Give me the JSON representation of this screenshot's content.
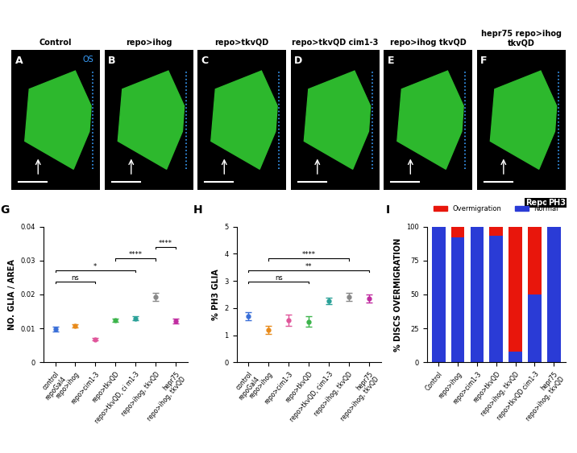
{
  "images": [
    {
      "panel": "A",
      "title": "Control",
      "annotation": "OS"
    },
    {
      "panel": "B",
      "title": "repo>ihog"
    },
    {
      "panel": "C",
      "title": "repo>tkvQD"
    },
    {
      "panel": "D",
      "title": "repo>tkvQD cim1-3"
    },
    {
      "panel": "E",
      "title": "repo>ihog tkvQD"
    },
    {
      "panel": "F",
      "title": "hepr75 repo>ihog\ntkvQD"
    }
  ],
  "stain_legend": [
    {
      "text": "Repo",
      "color": "#33cc33"
    },
    {
      "text": "PH3",
      "color": "#ff2020"
    }
  ],
  "chart_data": [
    {
      "type": "dot",
      "panel": "G",
      "y_label": "NO. GLIA / AREA",
      "categories": [
        "control\nrepoGal4",
        "repo>ihog",
        "repo>cim1-3",
        "repo>tkvQD",
        "repo>tkvQD, ci m1-3",
        "repo>ihog, tkvQD",
        "hepr75\nrepo>ihog, tkvQD"
      ],
      "values": [
        0.0098,
        0.0108,
        0.0068,
        0.0125,
        0.013,
        0.0192,
        0.0122
      ],
      "errors": [
        0.0006,
        0.0005,
        0.0004,
        0.0005,
        0.0006,
        0.0012,
        0.0008
      ],
      "colors": [
        "#3a6fd8",
        "#e88a1a",
        "#e0559a",
        "#3cb44b",
        "#2aa198",
        "#888888",
        "#c02ca0"
      ],
      "ylim": [
        0,
        0.04
      ],
      "yticks": [
        0,
        0.01,
        0.02,
        0.03,
        0.04
      ],
      "annotations": [
        {
          "text": "ns",
          "between": [
            "control\nrepoGal4",
            "repo>cim1-3"
          ]
        },
        {
          "text": "*",
          "between": [
            "control\nrepoGal4",
            "repo>tkvQD, ci m1-3"
          ]
        },
        {
          "text": "****",
          "between": [
            "repo>tkvQD",
            "repo>ihog, tkvQD"
          ]
        },
        {
          "text": "****",
          "between": [
            "repo>ihog, tkvQD",
            "hepr75\nrepo>ihog, tkvQD"
          ]
        }
      ]
    },
    {
      "type": "dot",
      "panel": "H",
      "y_label": "% PH3 GLIA",
      "categories": [
        "control\nrepoGal4",
        "repo>ihog",
        "repo>cim1-3",
        "repo>tkvQD",
        "repo>tkvQD, cim1-3",
        "repo>ihog, tkvQD",
        "hepr75\nrepo>ihog, tkvQD"
      ],
      "values": [
        1.7,
        1.2,
        1.55,
        1.5,
        2.25,
        2.4,
        2.35
      ],
      "errors": [
        0.15,
        0.15,
        0.2,
        0.2,
        0.12,
        0.15,
        0.15
      ],
      "colors": [
        "#3a6fd8",
        "#e88a1a",
        "#e0559a",
        "#3cb44b",
        "#2aa198",
        "#888888",
        "#c02ca0"
      ],
      "ylim": [
        0,
        5
      ],
      "yticks": [
        0,
        1,
        2,
        3,
        4,
        5
      ],
      "annotations": [
        {
          "text": "ns",
          "between": [
            "control\nrepoGal4",
            "repo>tkvQD"
          ]
        },
        {
          "text": "**",
          "between": [
            "control\nrepoGal4",
            "hepr75\nrepo>ihog, tkvQD"
          ]
        },
        {
          "text": "****",
          "between": [
            "repo>ihog",
            "repo>ihog, tkvQD"
          ]
        }
      ]
    },
    {
      "type": "bar",
      "panel": "I",
      "y_label": "% DISCS OVERMIGRATION",
      "stacked": true,
      "legend": "upper center",
      "categories": [
        "Control",
        "repo>ihog",
        "repo>cim1-3",
        "repo>tkvQD",
        "repo>ihog, tkvQD",
        "repo>tkvQD cim1-3",
        "hepr75\nrepo>ihog, tkvQD"
      ],
      "series": [
        {
          "name": "Normal",
          "color": "#2a3bd6",
          "values": [
            100,
            92,
            100,
            93,
            8,
            50,
            100
          ]
        },
        {
          "name": "Overmigration",
          "color": "#e8160c",
          "values": [
            0,
            8,
            0,
            7,
            92,
            50,
            0
          ]
        }
      ],
      "ylim": [
        0,
        100
      ],
      "yticks": [
        0,
        25,
        50,
        75,
        100
      ]
    }
  ]
}
